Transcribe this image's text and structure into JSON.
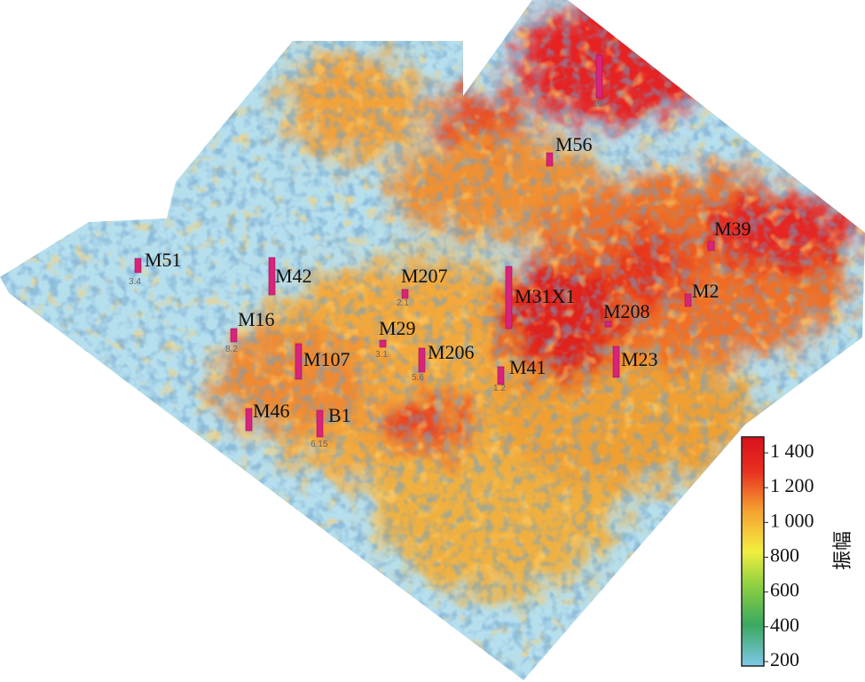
{
  "colorbar": {
    "title": "振幅",
    "ticks": [
      200,
      400,
      600,
      800,
      {
        "value": 1000,
        "label": "1 000"
      },
      {
        "value": 1200,
        "label": "1 200"
      },
      {
        "value": 1400,
        "label": "1 400"
      }
    ]
  },
  "wells": [
    {
      "name": "M51",
      "label": "3.4"
    },
    {
      "name": "M42"
    },
    {
      "name": "M16",
      "label": "8.2"
    },
    {
      "name": "M107"
    },
    {
      "name": "M46"
    },
    {
      "name": "B1",
      "label": "6.15"
    },
    {
      "name": "M207",
      "label": "2.1"
    },
    {
      "name": "M29",
      "label": "3.1"
    },
    {
      "name": "M206",
      "label": "5.6"
    },
    {
      "name": "M41",
      "label": "1.2"
    },
    {
      "name": "M31X1"
    },
    {
      "name": "M208"
    },
    {
      "name": "M23"
    },
    {
      "name": "M2"
    },
    {
      "name": "M39"
    },
    {
      "name": "M56"
    },
    {
      "label": "10"
    }
  ]
}
